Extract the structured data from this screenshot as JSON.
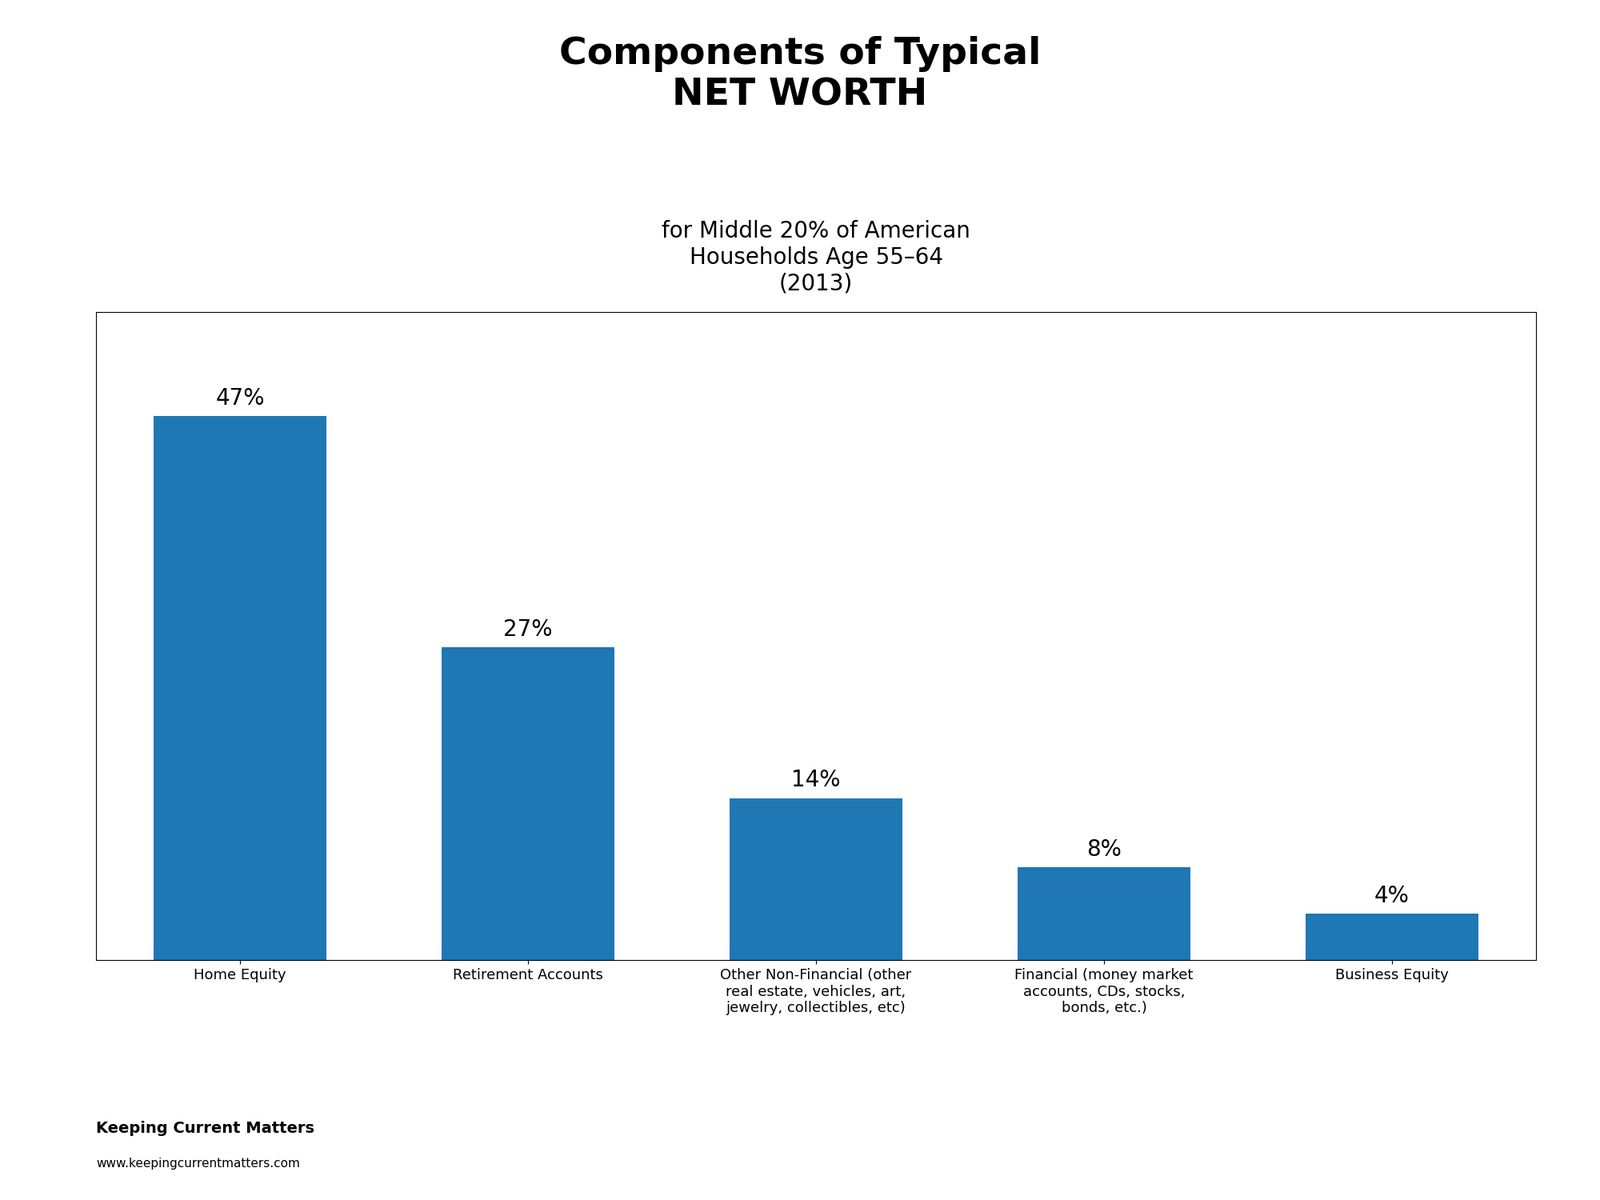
{
  "chart_data": {
    "type": "bar",
    "title": "Components of Typical\nNET WORTH",
    "subtitle": "for Middle 20% of American\nHouseholds Age 55–64\n(2013)",
    "categories": [
      "Home Equity",
      "Retirement Accounts",
      "Other Non-Financial (other\nreal estate, vehicles, art,\njewelry, collectibles, etc)",
      "Financial (money market\naccounts, CDs, stocks,\nbonds, etc.)",
      "Business Equity"
    ],
    "values": [
      47,
      27,
      14,
      8,
      4
    ],
    "value_labels": [
      "47%",
      "27%",
      "14%",
      "8%",
      "4%"
    ],
    "data_labels": true,
    "ylim": [
      0,
      56
    ],
    "tick_labels": "x",
    "grid": false,
    "annotations": [
      "Keeping Current Matters",
      "www.keepingcurrentmatters.com"
    ]
  }
}
